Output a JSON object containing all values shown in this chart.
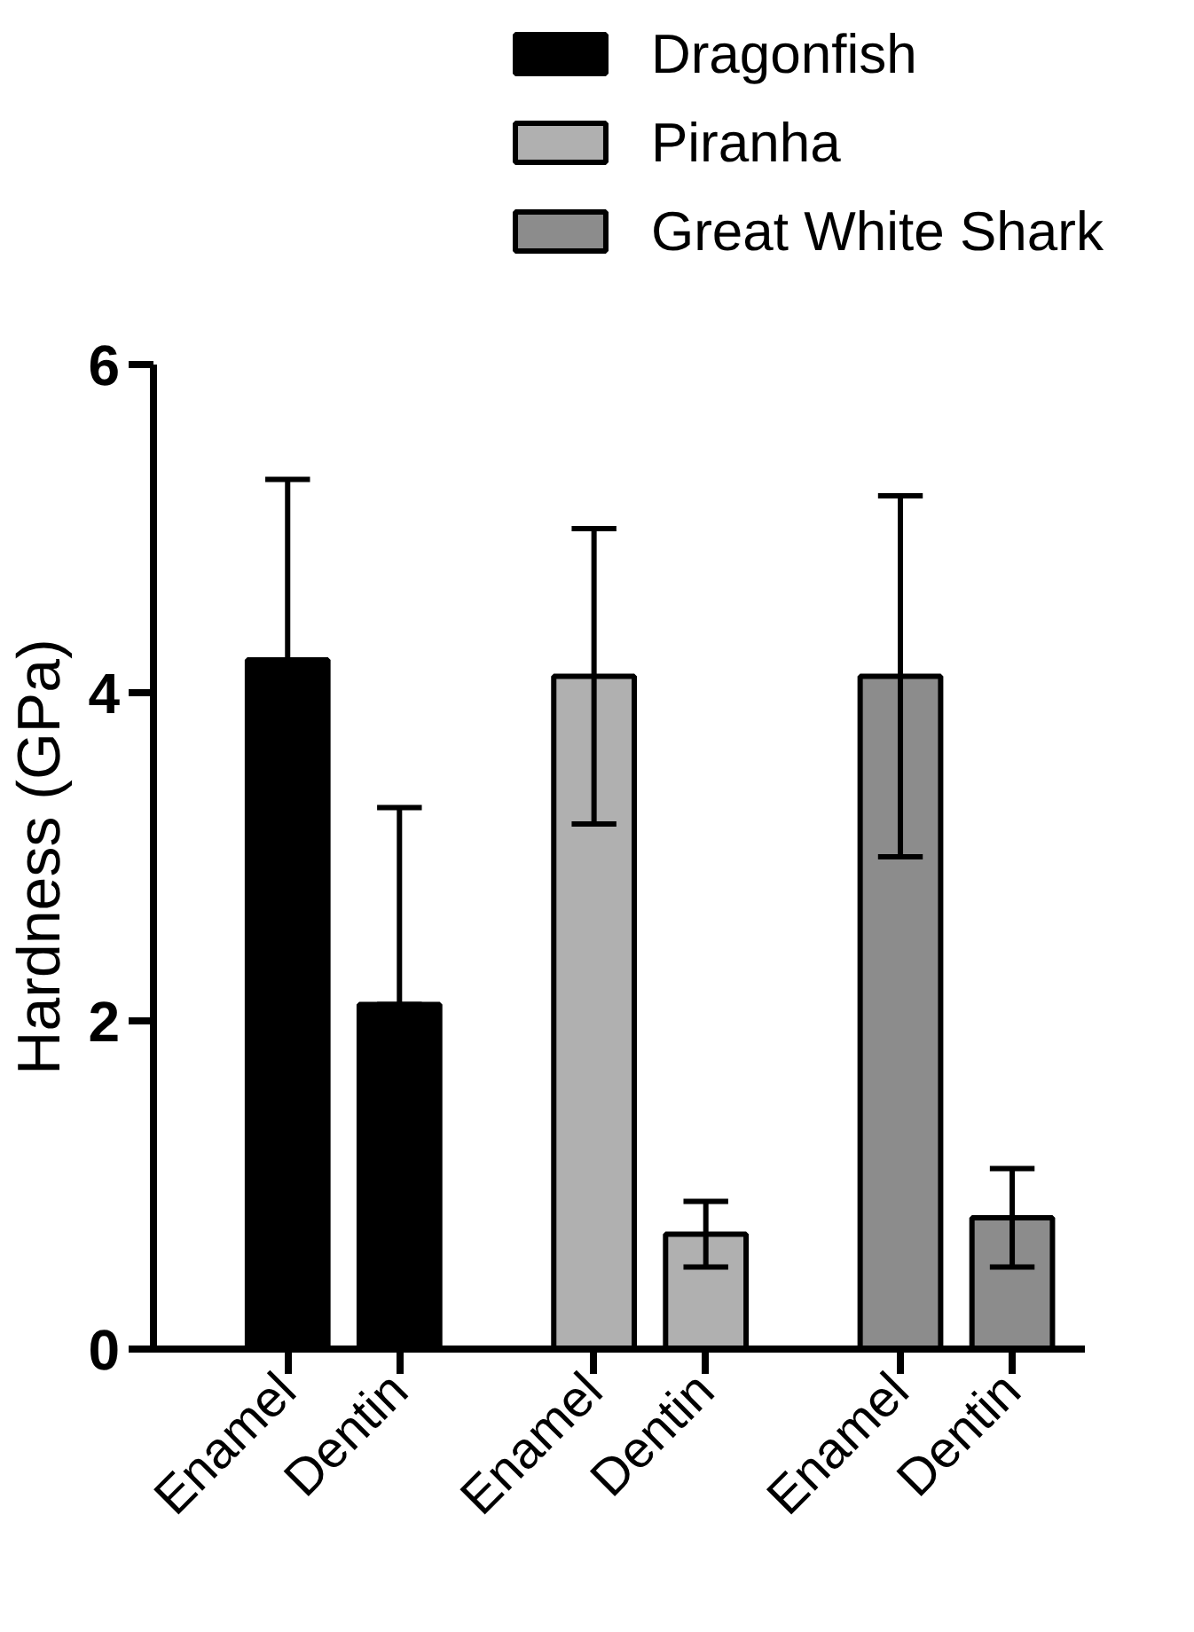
{
  "chart_data": {
    "type": "bar",
    "ylabel": "Hardness (GPa)",
    "categories": [
      "Enamel",
      "Dentin",
      "Enamel",
      "Dentin",
      "Enamel",
      "Dentin"
    ],
    "series": [
      {
        "name": "Dragonfish",
        "color": "#000000",
        "values": [
          4.2,
          2.1,
          null,
          null,
          null,
          null
        ],
        "errors": [
          [
            4.2,
            5.3
          ],
          [
            2.1,
            3.3
          ],
          null,
          null,
          null,
          null
        ]
      },
      {
        "name": "Piranha",
        "color": "#b0b0b0",
        "values": [
          null,
          null,
          4.1,
          0.7,
          null,
          null
        ],
        "errors": [
          null,
          null,
          [
            3.2,
            5.0
          ],
          [
            0.5,
            0.9
          ],
          null,
          null
        ]
      },
      {
        "name": "Great White Shark",
        "color": "#8c8c8c",
        "values": [
          null,
          null,
          null,
          null,
          4.1,
          0.8
        ],
        "errors": [
          null,
          null,
          null,
          null,
          [
            3.0,
            5.2
          ],
          [
            0.5,
            1.1
          ]
        ]
      }
    ],
    "ylim": [
      0,
      6
    ],
    "yticks": [
      0,
      2,
      4,
      6
    ],
    "grid": false,
    "legend": "top right"
  }
}
